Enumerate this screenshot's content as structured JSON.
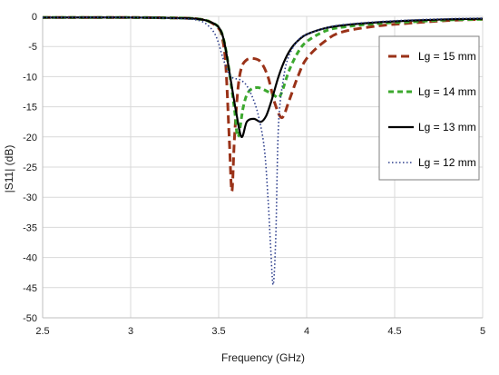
{
  "chart_data": {
    "type": "line",
    "xlabel": "Frequency (GHz)",
    "ylabel": "|S11| (dB)",
    "xlim": [
      2.5,
      5
    ],
    "ylim": [
      -50,
      0
    ],
    "xticks": [
      "2.5",
      "3",
      "3.5",
      "4",
      "4.5",
      "5"
    ],
    "yticks": [
      "0",
      "-5",
      "-10",
      "-15",
      "-20",
      "-25",
      "-30",
      "-35",
      "-40",
      "-45",
      "-50"
    ],
    "grid": true,
    "legend_position": "top-right",
    "series": [
      {
        "name": "Lg = 15 mm",
        "color": "#9a3218",
        "style": "long-dash",
        "x": [
          2.5,
          3.0,
          3.3,
          3.4,
          3.45,
          3.5,
          3.52,
          3.54,
          3.56,
          3.575,
          3.59,
          3.61,
          3.63,
          3.66,
          3.7,
          3.74,
          3.78,
          3.82,
          3.86,
          3.9,
          3.95,
          4.0,
          4.1,
          4.2,
          4.4,
          4.6,
          4.8,
          5.0
        ],
        "y": [
          -0.2,
          -0.2,
          -0.3,
          -0.5,
          -0.9,
          -2.0,
          -3.5,
          -8.0,
          -20.0,
          -29.0,
          -20.0,
          -12.0,
          -8.5,
          -7.2,
          -7.0,
          -7.6,
          -10.0,
          -14.5,
          -16.8,
          -14.0,
          -10.0,
          -7.0,
          -4.2,
          -2.6,
          -1.6,
          -1.1,
          -0.7,
          -0.5
        ]
      },
      {
        "name": "Lg = 14 mm",
        "color": "#3ca82e",
        "style": "dash",
        "x": [
          2.5,
          3.0,
          3.3,
          3.4,
          3.45,
          3.5,
          3.53,
          3.56,
          3.59,
          3.61,
          3.64,
          3.67,
          3.72,
          3.78,
          3.82,
          3.84,
          3.86,
          3.9,
          3.95,
          4.0,
          4.1,
          4.2,
          4.4,
          4.6,
          4.8,
          5.0
        ],
        "y": [
          -0.2,
          -0.2,
          -0.3,
          -0.5,
          -0.9,
          -1.8,
          -4.0,
          -9.0,
          -15.5,
          -20.0,
          -15.0,
          -12.5,
          -11.8,
          -12.5,
          -13.2,
          -13.5,
          -12.5,
          -9.0,
          -6.0,
          -4.2,
          -2.5,
          -1.8,
          -1.2,
          -0.9,
          -0.6,
          -0.5
        ]
      },
      {
        "name": "Lg = 13 mm",
        "color": "#000000",
        "style": "solid",
        "x": [
          2.5,
          3.0,
          3.3,
          3.4,
          3.45,
          3.5,
          3.53,
          3.56,
          3.6,
          3.63,
          3.66,
          3.7,
          3.74,
          3.77,
          3.8,
          3.84,
          3.88,
          3.92,
          3.96,
          4.0,
          4.1,
          4.2,
          4.4,
          4.6,
          4.8,
          5.0
        ],
        "y": [
          -0.2,
          -0.2,
          -0.3,
          -0.5,
          -0.9,
          -1.8,
          -4.0,
          -9.0,
          -16.0,
          -20.0,
          -17.5,
          -17.0,
          -17.5,
          -16.5,
          -14.0,
          -10.0,
          -7.0,
          -5.0,
          -3.8,
          -3.0,
          -2.0,
          -1.5,
          -1.0,
          -0.7,
          -0.5,
          -0.4
        ]
      },
      {
        "name": "Lg = 12 mm",
        "color": "#2d3e8c",
        "style": "dot",
        "x": [
          2.5,
          3.0,
          3.3,
          3.4,
          3.45,
          3.48,
          3.5,
          3.52,
          3.55,
          3.58,
          3.62,
          3.66,
          3.7,
          3.73,
          3.76,
          3.78,
          3.795,
          3.81,
          3.825,
          3.84,
          3.87,
          3.9,
          3.95,
          4.0,
          4.1,
          4.2,
          4.4,
          4.6,
          4.8,
          5.0
        ],
        "y": [
          -0.2,
          -0.2,
          -0.4,
          -0.8,
          -1.8,
          -3.0,
          -4.5,
          -6.5,
          -9.0,
          -10.2,
          -10.5,
          -11.5,
          -14.0,
          -17.0,
          -22.0,
          -30.0,
          -38.0,
          -44.5,
          -36.0,
          -18.0,
          -10.0,
          -6.5,
          -4.0,
          -3.0,
          -2.0,
          -1.4,
          -0.9,
          -0.6,
          -0.4,
          -0.3
        ]
      }
    ]
  }
}
